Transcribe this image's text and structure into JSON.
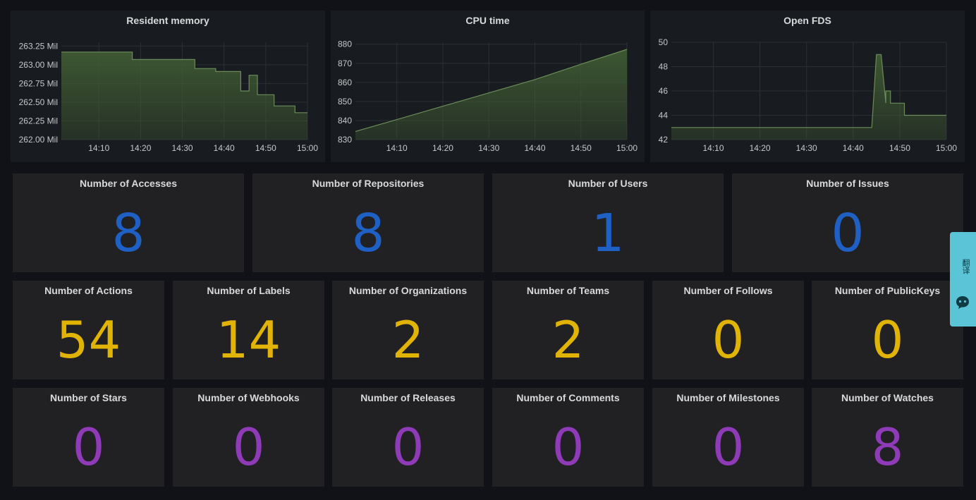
{
  "charts": [
    {
      "title": "Resident memory",
      "y_ticks": [
        "263.25 Mil",
        "263.00 Mil",
        "262.75 Mil",
        "262.50 Mil",
        "262.25 Mil",
        "262.00 Mil"
      ],
      "x_ticks": [
        "14:10",
        "14:20",
        "14:30",
        "14:40",
        "14:50",
        "15:00"
      ]
    },
    {
      "title": "CPU time",
      "y_ticks": [
        "880",
        "870",
        "860",
        "850",
        "840",
        "830"
      ],
      "x_ticks": [
        "14:10",
        "14:20",
        "14:30",
        "14:40",
        "14:50",
        "15:00"
      ]
    },
    {
      "title": "Open FDS",
      "y_ticks": [
        "50",
        "48",
        "46",
        "44",
        "42"
      ],
      "x_ticks": [
        "14:10",
        "14:20",
        "14:30",
        "14:40",
        "14:50",
        "15:00"
      ]
    }
  ],
  "chart_data": [
    {
      "type": "area",
      "title": "Resident memory",
      "x": [
        "14:01",
        "14:18",
        "14:18",
        "14:33",
        "14:33",
        "14:38",
        "14:38",
        "14:44",
        "14:44",
        "14:46",
        "14:46",
        "14:48",
        "14:48",
        "14:52",
        "14:52",
        "14:57",
        "14:57",
        "15:00"
      ],
      "values": [
        263.17,
        263.17,
        263.07,
        263.07,
        262.95,
        262.95,
        262.91,
        262.91,
        262.65,
        262.65,
        262.86,
        262.86,
        262.6,
        262.6,
        262.45,
        262.45,
        262.36,
        262.36
      ],
      "ylim": [
        262.0,
        263.3
      ],
      "grid": true
    },
    {
      "type": "area",
      "title": "CPU time",
      "x": [
        "14:01",
        "14:10",
        "14:20",
        "14:30",
        "14:40",
        "14:50",
        "15:00"
      ],
      "values": [
        834.3,
        840.5,
        847.5,
        854.5,
        861.5,
        869.5,
        877.3
      ],
      "ylim": [
        830,
        881
      ],
      "grid": true
    },
    {
      "type": "area",
      "title": "Open FDS",
      "x": [
        "14:01",
        "14:44",
        "14:45",
        "14:46",
        "14:47",
        "14:47",
        "14:48",
        "14:48",
        "14:51",
        "14:51",
        "15:00"
      ],
      "values": [
        43,
        43,
        49,
        49,
        45,
        46,
        46,
        45,
        45,
        44,
        44
      ],
      "ylim": [
        42,
        50
      ],
      "grid": true
    }
  ],
  "stats_row1": [
    {
      "label": "Number of Accesses",
      "value": "8"
    },
    {
      "label": "Number of Repositories",
      "value": "8"
    },
    {
      "label": "Number of Users",
      "value": "1"
    },
    {
      "label": "Number of Issues",
      "value": "0"
    }
  ],
  "stats_row2": [
    {
      "label": "Number of Actions",
      "value": "54"
    },
    {
      "label": "Number of Labels",
      "value": "14"
    },
    {
      "label": "Number of Organizations",
      "value": "2"
    },
    {
      "label": "Number of Teams",
      "value": "2"
    },
    {
      "label": "Number of Follows",
      "value": "0"
    },
    {
      "label": "Number of PublicKeys",
      "value": "0"
    }
  ],
  "stats_row3": [
    {
      "label": "Number of Stars",
      "value": "0"
    },
    {
      "label": "Number of Webhooks",
      "value": "0"
    },
    {
      "label": "Number of Releases",
      "value": "0"
    },
    {
      "label": "Number of Comments",
      "value": "0"
    },
    {
      "label": "Number of Milestones",
      "value": "0"
    },
    {
      "label": "Number of Watches",
      "value": "8"
    }
  ],
  "colors": {
    "blue": "#1f60c4",
    "yellow": "#e0b400",
    "purple": "#8f3bb8",
    "series_line": "#6b8c5a",
    "series_fill": "#3f5a33"
  },
  "side_tab": {
    "text": "翻译",
    "icon": "chat-bubble-icon"
  }
}
